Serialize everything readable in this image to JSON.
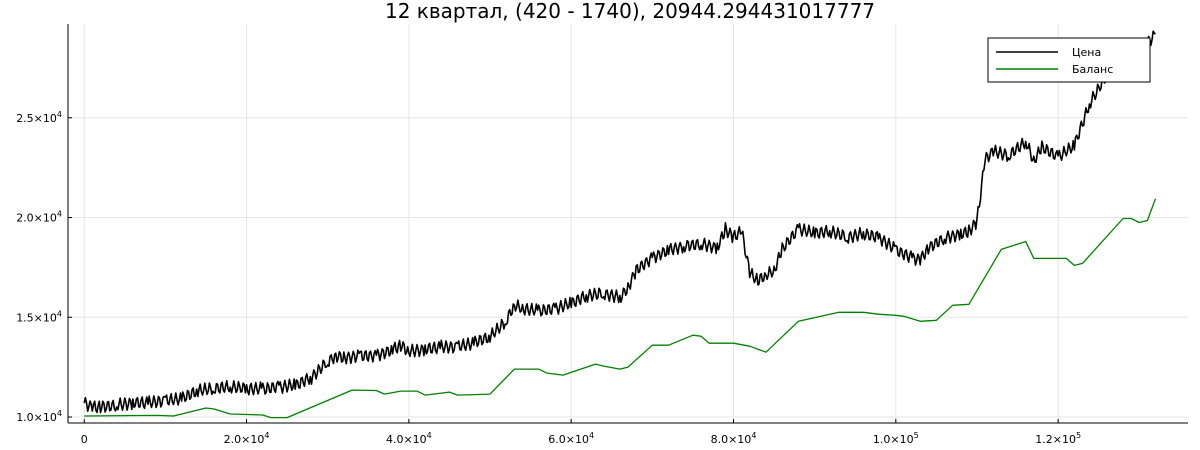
{
  "chart_data": {
    "type": "line",
    "title": "12 квартал, (420 - 1740), 20944.294431017777",
    "xlabel": "",
    "ylabel": "",
    "xlim": [
      -2000,
      136000
    ],
    "ylim": [
      9700,
      29700
    ],
    "grid": true,
    "legend_position": "top-right",
    "x_ticks": [
      {
        "value": 0,
        "base": "0",
        "exp": ""
      },
      {
        "value": 20000,
        "base": "2.0×10",
        "exp": "4"
      },
      {
        "value": 40000,
        "base": "4.0×10",
        "exp": "4"
      },
      {
        "value": 60000,
        "base": "6.0×10",
        "exp": "4"
      },
      {
        "value": 80000,
        "base": "8.0×10",
        "exp": "4"
      },
      {
        "value": 100000,
        "base": "1.0×10",
        "exp": "5"
      },
      {
        "value": 120000,
        "base": "1.2×10",
        "exp": "5"
      }
    ],
    "y_ticks": [
      {
        "value": 10000,
        "base": "1.0×10",
        "exp": "4"
      },
      {
        "value": 15000,
        "base": "1.5×10",
        "exp": "4"
      },
      {
        "value": 20000,
        "base": "2.0×10",
        "exp": "4"
      },
      {
        "value": 25000,
        "base": "2.5×10",
        "exp": "4"
      }
    ],
    "series": [
      {
        "name": "Цена",
        "color": "#000000",
        "points": [
          [
            0,
            10700
          ],
          [
            1000,
            10500
          ],
          [
            2000,
            10500
          ],
          [
            4000,
            10600
          ],
          [
            6000,
            10700
          ],
          [
            8000,
            10700
          ],
          [
            10000,
            10800
          ],
          [
            12000,
            10900
          ],
          [
            14000,
            11300
          ],
          [
            16000,
            11400
          ],
          [
            18000,
            11500
          ],
          [
            20000,
            11400
          ],
          [
            22000,
            11400
          ],
          [
            24000,
            11500
          ],
          [
            26000,
            11600
          ],
          [
            28000,
            12000
          ],
          [
            30000,
            12800
          ],
          [
            31000,
            13100
          ],
          [
            32000,
            13000
          ],
          [
            34000,
            13100
          ],
          [
            36000,
            13100
          ],
          [
            38000,
            13400
          ],
          [
            39000,
            13600
          ],
          [
            40000,
            13300
          ],
          [
            42000,
            13400
          ],
          [
            44000,
            13500
          ],
          [
            46000,
            13500
          ],
          [
            48000,
            13700
          ],
          [
            50000,
            14000
          ],
          [
            52000,
            14800
          ],
          [
            53000,
            15600
          ],
          [
            54000,
            15400
          ],
          [
            56000,
            15300
          ],
          [
            58000,
            15400
          ],
          [
            60000,
            15700
          ],
          [
            62000,
            16100
          ],
          [
            64000,
            16200
          ],
          [
            66000,
            16000
          ],
          [
            67000,
            16500
          ],
          [
            68000,
            17400
          ],
          [
            70000,
            18000
          ],
          [
            72000,
            18400
          ],
          [
            74000,
            18600
          ],
          [
            76000,
            18700
          ],
          [
            78000,
            18500
          ],
          [
            79000,
            19400
          ],
          [
            80000,
            19000
          ],
          [
            81000,
            19300
          ],
          [
            82000,
            17200
          ],
          [
            83000,
            16800
          ],
          [
            84000,
            17100
          ],
          [
            85000,
            17300
          ],
          [
            86000,
            18400
          ],
          [
            88000,
            19400
          ],
          [
            90000,
            19200
          ],
          [
            92000,
            19300
          ],
          [
            94000,
            19000
          ],
          [
            96000,
            19200
          ],
          [
            98000,
            19000
          ],
          [
            100000,
            18400
          ],
          [
            102000,
            18000
          ],
          [
            103000,
            17900
          ],
          [
            104000,
            18500
          ],
          [
            106000,
            19000
          ],
          [
            108000,
            19200
          ],
          [
            109000,
            19300
          ],
          [
            110000,
            19800
          ],
          [
            111000,
            22900
          ],
          [
            112000,
            23300
          ],
          [
            114000,
            23100
          ],
          [
            116000,
            23800
          ],
          [
            117000,
            22800
          ],
          [
            118000,
            23500
          ],
          [
            120000,
            23000
          ],
          [
            122000,
            23600
          ],
          [
            124000,
            25800
          ],
          [
            126000,
            27100
          ],
          [
            128000,
            27100
          ],
          [
            129000,
            27200
          ],
          [
            130000,
            28200
          ],
          [
            131000,
            28800
          ],
          [
            132000,
            29200
          ]
        ]
      },
      {
        "name": "Баланс",
        "color": "#008000",
        "points": [
          [
            0,
            10050
          ],
          [
            9000,
            10080
          ],
          [
            11000,
            10050
          ],
          [
            15000,
            10450
          ],
          [
            16000,
            10400
          ],
          [
            18000,
            10150
          ],
          [
            22000,
            10100
          ],
          [
            23000,
            9970
          ],
          [
            25000,
            9970
          ],
          [
            33000,
            11350
          ],
          [
            36000,
            11330
          ],
          [
            37000,
            11150
          ],
          [
            39000,
            11300
          ],
          [
            41000,
            11300
          ],
          [
            42000,
            11100
          ],
          [
            44000,
            11200
          ],
          [
            45000,
            11250
          ],
          [
            46000,
            11100
          ],
          [
            50000,
            11150
          ],
          [
            53000,
            12400
          ],
          [
            56000,
            12400
          ],
          [
            57000,
            12200
          ],
          [
            59000,
            12100
          ],
          [
            63000,
            12650
          ],
          [
            64000,
            12550
          ],
          [
            66000,
            12400
          ],
          [
            67000,
            12500
          ],
          [
            70000,
            13600
          ],
          [
            72000,
            13600
          ],
          [
            75000,
            14100
          ],
          [
            76000,
            14050
          ],
          [
            77000,
            13700
          ],
          [
            80000,
            13700
          ],
          [
            82000,
            13550
          ],
          [
            84000,
            13250
          ],
          [
            88000,
            14800
          ],
          [
            93000,
            15250
          ],
          [
            96000,
            15250
          ],
          [
            98000,
            15150
          ],
          [
            100000,
            15100
          ],
          [
            101000,
            15050
          ],
          [
            103000,
            14800
          ],
          [
            105000,
            14850
          ],
          [
            107000,
            15600
          ],
          [
            109000,
            15650
          ],
          [
            113000,
            18400
          ],
          [
            116000,
            18800
          ],
          [
            117000,
            17950
          ],
          [
            121000,
            17950
          ],
          [
            122000,
            17600
          ],
          [
            123000,
            17700
          ],
          [
            128000,
            19950
          ],
          [
            129000,
            19950
          ],
          [
            130000,
            19750
          ],
          [
            131000,
            19850
          ],
          [
            132000,
            20944
          ]
        ]
      }
    ]
  }
}
